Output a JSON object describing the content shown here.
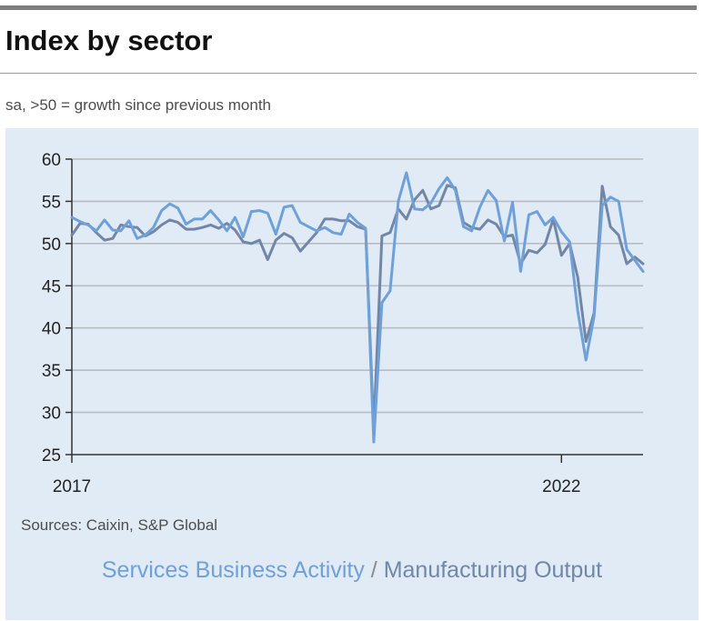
{
  "title": "Index by sector",
  "subtitle": "sa, >50 = growth since previous month",
  "source": "Sources: Caixin, S&P Global",
  "legend": {
    "services_label": "Services Business Activity",
    "separator": " / ",
    "manufacturing_label": "Manufacturing Output"
  },
  "colors": {
    "services": "#6fa0d8",
    "manufacturing": "#7286a8",
    "panel_bg": "#e0ebf6",
    "grid": "#b9bcc2",
    "axis": "#333333"
  },
  "chart_data": {
    "type": "line",
    "title": "Index by sector",
    "subtitle": "sa, >50 = growth since previous month",
    "xlabel": "",
    "ylabel": "",
    "ylim": [
      25,
      60
    ],
    "yticks": [
      25,
      30,
      35,
      40,
      45,
      50,
      55,
      60
    ],
    "xticks": [
      {
        "index": 0,
        "label": "2017"
      },
      {
        "index": 60,
        "label": "2022"
      }
    ],
    "grid": "horizontal",
    "series": [
      {
        "name": "Services Business Activity",
        "color": "#6fa0d8",
        "values": [
          53.1,
          52.6,
          52.2,
          51.5,
          52.8,
          51.6,
          51.5,
          52.7,
          50.6,
          51.0,
          51.9,
          53.9,
          54.7,
          54.2,
          52.3,
          52.9,
          52.9,
          53.9,
          52.8,
          51.5,
          53.1,
          50.8,
          53.8,
          53.9,
          53.6,
          51.1,
          54.3,
          54.5,
          52.5,
          52.0,
          51.5,
          51.9,
          51.3,
          51.1,
          53.5,
          52.5,
          51.8,
          26.5,
          43.0,
          44.4,
          55.0,
          58.4,
          54.1,
          54.0,
          54.8,
          56.5,
          57.8,
          56.3,
          52.0,
          51.5,
          54.3,
          56.3,
          55.1,
          50.3,
          54.9,
          46.7,
          53.4,
          53.8,
          52.2,
          53.1,
          51.4,
          50.2,
          42.0,
          36.2,
          41.4,
          54.5,
          55.5,
          55.0,
          49.3,
          48.0,
          46.7
        ]
      },
      {
        "name": "Manufacturing Output",
        "color": "#7286a8",
        "values": [
          51.0,
          52.4,
          52.3,
          51.3,
          50.4,
          50.6,
          52.2,
          52.0,
          51.9,
          50.9,
          51.4,
          52.2,
          52.8,
          52.5,
          51.7,
          51.7,
          51.9,
          52.2,
          51.8,
          52.4,
          51.6,
          50.2,
          50.0,
          50.4,
          48.1,
          50.4,
          51.2,
          50.7,
          49.1,
          50.2,
          51.3,
          52.9,
          52.9,
          52.7,
          52.7,
          52.0,
          51.7,
          28.0,
          50.9,
          51.3,
          54.1,
          52.9,
          55.2,
          56.3,
          54.1,
          54.5,
          56.9,
          56.6,
          52.5,
          51.9,
          51.7,
          52.8,
          52.3,
          50.8,
          51.0,
          47.6,
          49.2,
          48.9,
          49.9,
          52.9,
          48.6,
          50.0,
          46.0,
          38.4,
          41.8,
          56.8,
          52.0,
          51.0,
          47.6,
          48.4,
          47.6
        ]
      }
    ]
  }
}
